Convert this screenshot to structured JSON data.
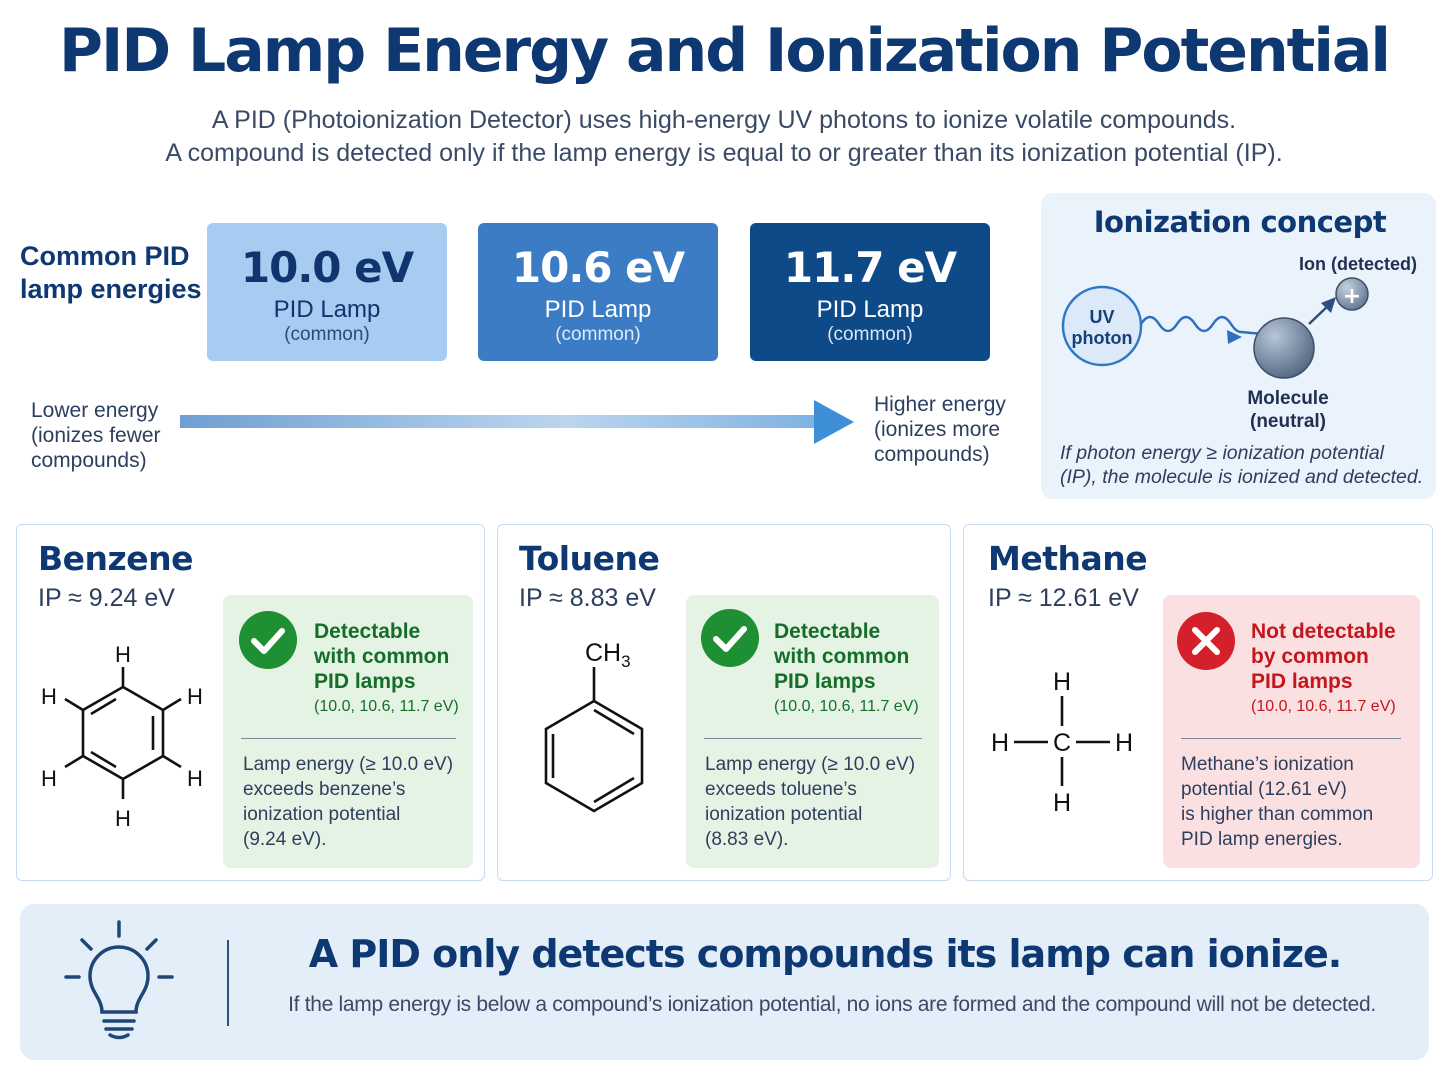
{
  "title": "PID Lamp Energy and Ionization Potential",
  "subtitle": {
    "line1": "A PID (Photoionization Detector) uses high-energy UV photons to ionize volatile compounds.",
    "line2": "A compound is detected only if the lamp energy is equal to or greater than its ionization potential (IP)."
  },
  "lamps": {
    "heading_line1": "Common PID",
    "heading_line2": "lamp energies",
    "items": [
      {
        "energy": "10.0 eV",
        "label": "PID Lamp",
        "note": "(common)"
      },
      {
        "energy": "10.6 eV",
        "label": "PID Lamp",
        "note": "(common)"
      },
      {
        "energy": "11.7 eV",
        "label": "PID Lamp",
        "note": "(common)"
      }
    ],
    "lower": {
      "line1": "Lower energy",
      "line2": "(ionizes fewer",
      "line3": "compounds)"
    },
    "higher": {
      "line1": "Higher energy",
      "line2": "(ionizes more",
      "line3": "compounds)"
    }
  },
  "concept": {
    "title": "Ionization concept",
    "photon_line1": "UV",
    "photon_line2": "photon",
    "ion_label": "Ion (detected)",
    "ion_symbol": "+",
    "molecule_line1": "Molecule",
    "molecule_line2": "(neutral)",
    "caption_line1": "If photon energy ≥ ionization potential",
    "caption_line2": "(IP), the molecule is ionized and detected."
  },
  "compounds": [
    {
      "name": "Benzene",
      "ip": "IP ≈ 9.24 eV",
      "atom": "H",
      "status_line1": "Detectable",
      "status_line2": "with common",
      "status_line3": "PID lamps",
      "lamps": "(10.0, 10.6, 11.7 eV)",
      "body_line1": "Lamp energy (≥ 10.0 eV)",
      "body_line2": "exceeds benzene’s",
      "body_line3": "ionization potential",
      "body_line4": "(9.24 eV)."
    },
    {
      "name": "Toluene",
      "ip": "IP ≈ 8.83 eV",
      "group": "CH",
      "group_sub": "3",
      "status_line1": "Detectable",
      "status_line2": "with common",
      "status_line3": "PID lamps",
      "lamps": "(10.0, 10.6, 11.7 eV)",
      "body_line1": "Lamp energy (≥ 10.0 eV)",
      "body_line2": "exceeds toluene’s",
      "body_line3": "ionization potential",
      "body_line4": "(8.83 eV)."
    },
    {
      "name": "Methane",
      "ip": "IP ≈ 12.61 eV",
      "atom_h": "H",
      "atom_c": "C",
      "status_line1": "Not detectable",
      "status_line2": "by common",
      "status_line3": "PID lamps",
      "lamps": "(10.0, 10.6, 11.7 eV)",
      "body_line1": "Methane’s ionization",
      "body_line2": "potential (12.61 eV)",
      "body_line3": "is higher than common",
      "body_line4": "PID lamp energies."
    }
  ],
  "takeaway": {
    "headline": "A PID only detects compounds its lamp can ionize.",
    "body": "If the lamp energy is below a compound’s ionization potential, no ions are formed and the compound will not be detected."
  },
  "colors": {
    "navy": "#0e3872",
    "ok_green": "#1f8f34",
    "bad_red": "#d3202a"
  }
}
